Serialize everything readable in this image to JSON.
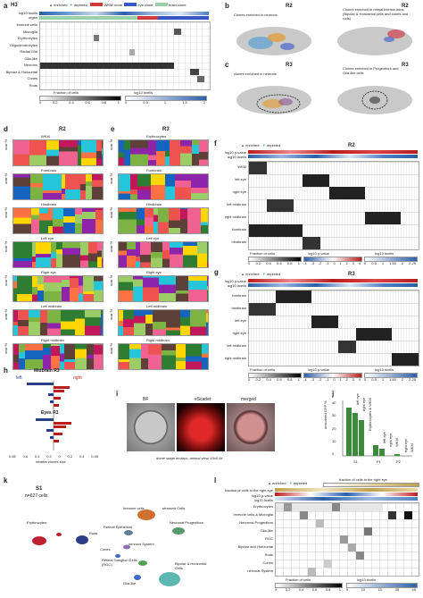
{
  "panel_a": {
    "label": "a",
    "title": "H3",
    "legend": {
      "enriched": "enriched",
      "depleted": "depleted",
      "wkm": "WKM clone",
      "eye": "eye clone",
      "brain": "brain clone"
    },
    "top_rows": [
      "log10 #cells",
      "organ"
    ],
    "rows": [
      "Immune cells",
      "Microglia",
      "Erythrocytes",
      "Oligodendrocytes",
      "Radial Glia",
      "Glia-like",
      "Neurons",
      "Bipolar & Horizontal",
      "Cones",
      "Rods"
    ],
    "legend_left": "Fraction of cells",
    "legend_right": "log10 #cells",
    "ticks_left": [
      "0",
      "0.2",
      "0.4",
      "0.6",
      "0.8",
      "1"
    ],
    "ticks_right": [
      "0",
      "0.5",
      "1",
      "1.5",
      "2"
    ]
  },
  "panel_b": {
    "label": "b",
    "title_left": "R2",
    "title_right": "R2",
    "caption_left": "Clones enriched in neurons",
    "caption_right": "Clones enriched in retinal interneurons (Bipolar & Horizontal cells and cones and rods)"
  },
  "panel_c": {
    "label": "c",
    "title_left": "R3",
    "title_right": "R3",
    "caption_left": "clones enriched in neurons",
    "caption_right": "Clones enriched in Progenitors and Glia-like cells"
  },
  "panel_d": {
    "label": "d",
    "title": "R2",
    "items": [
      "WKM",
      "Forebrain",
      "Hindbrain",
      "Left eye",
      "Right eye",
      "Left midbrain",
      "Right midbrain"
    ],
    "ylabel": "scar %"
  },
  "panel_e": {
    "label": "e",
    "title": "R3",
    "items": [
      "Erythrocytes",
      "Forebrain",
      "Hindbrain",
      "Left eye",
      "Right eye",
      "Left midbrain",
      "Right midbrain"
    ],
    "ylabel": "scar %"
  },
  "panel_f": {
    "label": "f",
    "title": "R2",
    "legend": {
      "enriched": "enriched",
      "depleted": "depleted"
    },
    "top_rows": [
      "log10 p-value",
      "log10 #cells"
    ],
    "rows": [
      "WKM",
      "left eye",
      "right eye",
      "left midbrain",
      "right midbrain",
      "forebrain",
      "hindbrain"
    ],
    "legend_labels": [
      "Fraction of cells",
      "log10 p-value",
      "log10 #cells"
    ],
    "ticks_a": [
      "0",
      "0.2",
      "0.4",
      "0.6",
      "0.8",
      "1"
    ],
    "ticks_b": [
      "-4",
      "-3",
      "-2",
      "-1",
      "0",
      "1",
      "2",
      "3",
      "4"
    ],
    "ticks_c": [
      "0",
      "0.5",
      "1",
      "1.50",
      "2",
      "2.25"
    ]
  },
  "panel_g": {
    "label": "g",
    "title": "R3",
    "legend": {
      "enriched": "enriched",
      "depleted": "depleted"
    },
    "top_rows": [
      "log10 p-value",
      "log10 #cells"
    ],
    "rows": [
      "forebrain",
      "hindbrain",
      "left eye",
      "right eye",
      "left midbrain",
      "right midbrain"
    ],
    "legend_labels": [
      "Fraction of cells",
      "log10 p-value",
      "log10 #cells"
    ],
    "ticks_a": [
      "0",
      "0.2",
      "0.4",
      "0.6",
      "0.8",
      "1"
    ],
    "ticks_b": [
      "-4",
      "-3",
      "-2",
      "-1",
      "0",
      "1",
      "2",
      "3",
      "4"
    ],
    "ticks_c": [
      "0",
      "0.5",
      "1",
      "1.50",
      "2",
      "2.25"
    ]
  },
  "panel_h": {
    "label": "h",
    "title_top": "Midbrain R3",
    "left": "left",
    "right": "right",
    "title_bottom": "Eyes R3",
    "xlabel": "relative clones size",
    "ticks": [
      "0.65",
      "0.6",
      "0.4",
      "0.2",
      "0",
      "0.2",
      "0.4",
      "0.45"
    ]
  },
  "panel_i": {
    "label": "i",
    "titles": [
      "BF",
      "eScarlet",
      "merged"
    ],
    "caption": "dome stage embryo, animal view, 10x0.8z"
  },
  "panel_j": {
    "label": "j",
    "ylabel": "unscarred GFP %",
    "yticks": [
      "0",
      "10",
      "20",
      "30",
      "40"
    ],
    "categories": [
      "S1",
      "P1",
      "P2"
    ],
    "bar_labels": [
      "left eye",
      "right eye",
      "Erythrocytes & WKM",
      "left eye",
      "right eye",
      "WKM",
      "right eye",
      "WKM"
    ]
  },
  "panel_k": {
    "label": "k",
    "title": "S1",
    "subtitle": "n=627 cells",
    "clusters": [
      "Erythrocytes",
      "Rods",
      "Immune cells",
      "stressed Cells",
      "Retinal Epithelium",
      "Neuronal Progenitors",
      "nervous System",
      "Cones",
      "Retinal Ganglion Cells (RGC)",
      "Glia-like",
      "Bipolar & Horizontal Cells"
    ]
  },
  "panel_l": {
    "label": "l",
    "legend": {
      "enriched": "enriched",
      "depleted": "depleted"
    },
    "top_rows": [
      "fraction of cells in the right eye",
      "log10 p-value",
      "log10 #cells"
    ],
    "top_right": "fraction of cells in the right eye",
    "rows": [
      "Erythrocytes",
      "Immune cells & Microglia",
      "Neuronal Progenitors",
      "Glia-like",
      "RGC",
      "Bipolar and Horizontal",
      "Rods",
      "Cones",
      "nervous System"
    ],
    "legend_labels": [
      "Fraction of cells",
      "log10 #cells"
    ],
    "ticks_a": [
      "0",
      "0.2",
      "0.4",
      "0.6",
      "0.8",
      "1"
    ],
    "ticks_b": [
      "5",
      "10",
      "15",
      "35",
      "45"
    ]
  },
  "colors": {
    "enriched": "#7b3f8c",
    "depleted": "#4aa8b8",
    "wkm": "#d13a3a",
    "eye": "#3a55c8",
    "brain": "#9ad0a8",
    "heat_red": "#b81d1d",
    "heat_blue": "#2c5ea8"
  }
}
